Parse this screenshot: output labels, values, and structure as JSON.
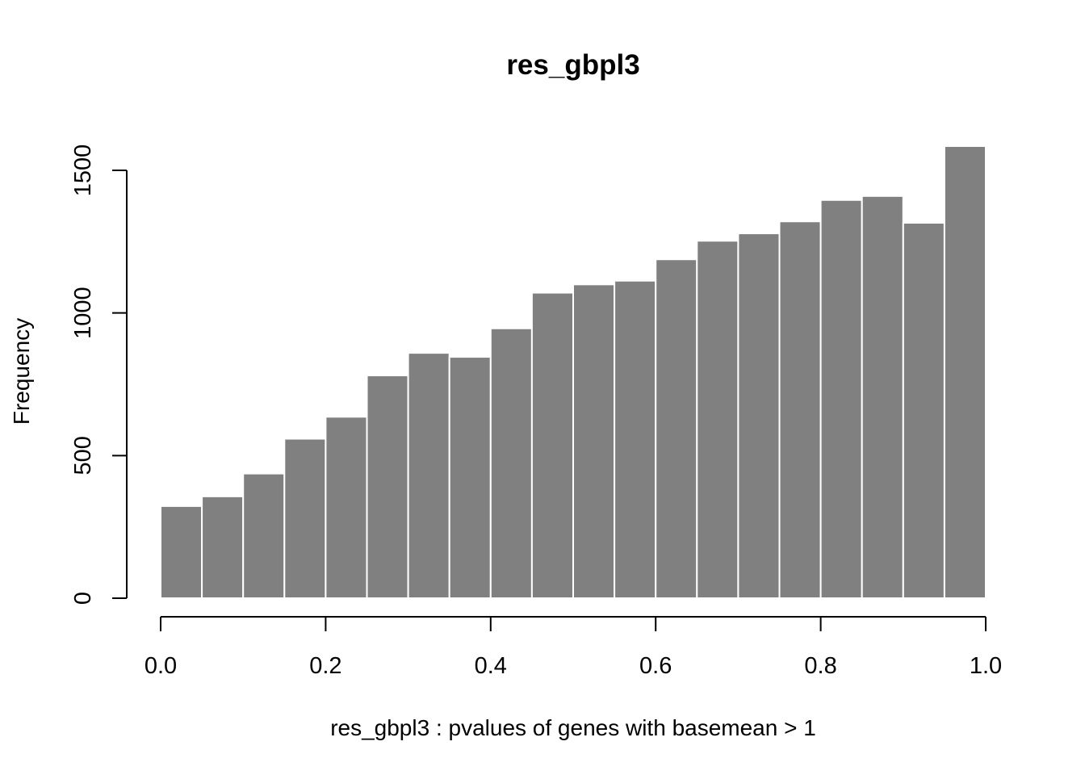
{
  "chart_data": {
    "type": "bar",
    "subtype": "histogram",
    "title": "res_gbpl3",
    "xlabel": "res_gbpl3 : pvalues of genes with basemean > 1",
    "ylabel": "Frequency",
    "bin_edges": [
      0.0,
      0.05,
      0.1,
      0.15,
      0.2,
      0.25,
      0.3,
      0.35,
      0.4,
      0.45,
      0.5,
      0.55,
      0.6,
      0.65,
      0.7,
      0.75,
      0.8,
      0.85,
      0.9,
      0.95,
      1.0
    ],
    "values": [
      323,
      357,
      437,
      559,
      636,
      781,
      860,
      846,
      946,
      1071,
      1100,
      1113,
      1188,
      1253,
      1279,
      1321,
      1396,
      1410,
      1316,
      1585
    ],
    "xlim": [
      0,
      1
    ],
    "ylim": [
      0,
      1600
    ],
    "x_ticks": [
      0.0,
      0.2,
      0.4,
      0.6,
      0.8,
      1.0
    ],
    "x_tick_labels": [
      "0.0",
      "0.2",
      "0.4",
      "0.6",
      "0.8",
      "1.0"
    ],
    "y_ticks": [
      0,
      500,
      1000,
      1500
    ],
    "y_tick_labels": [
      "0",
      "500",
      "1000",
      "1500"
    ],
    "bar_color": "#808080",
    "bar_border_color": "#ffffff",
    "grid": false,
    "legend": "none"
  }
}
